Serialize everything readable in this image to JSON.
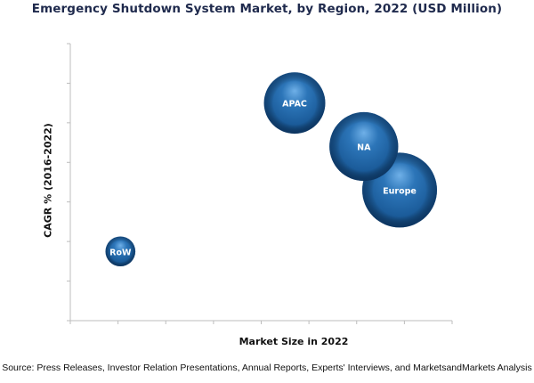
{
  "chart_data": {
    "type": "bubble",
    "title": "Emergency Shutdown System Market, by Region, 2022 (USD Million)",
    "xlabel": "Market Size in 2022",
    "ylabel": "CAGR % (2016-2022)",
    "xlim": [
      0,
      8
    ],
    "ylim": [
      0,
      7
    ],
    "x_ticks": 8,
    "y_ticks": 7,
    "grid": false,
    "series": [
      {
        "name": "RoW",
        "x": 1.05,
        "y": 1.75,
        "size": 0.4
      },
      {
        "name": "APAC",
        "x": 4.7,
        "y": 5.5,
        "size": 0.82
      },
      {
        "name": "NA",
        "x": 6.15,
        "y": 4.4,
        "size": 0.92
      },
      {
        "name": "Europe",
        "x": 6.9,
        "y": 3.3,
        "size": 1.0
      }
    ],
    "bubble_color": "#1f5f9e",
    "source": "Source: Press Releases, Investor Relation Presentations, Annual Reports, Experts' Interviews, and MarketsandMarkets Analysis"
  }
}
